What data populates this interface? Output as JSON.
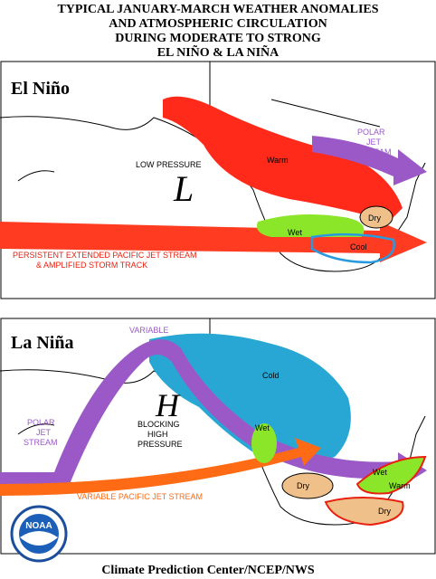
{
  "header": {
    "title_lines": [
      "TYPICAL JANUARY-MARCH WEATHER ANOMALIES",
      "AND ATMOSPHERIC CIRCULATION",
      "DURING MODERATE TO STRONG",
      "EL NIÑO & LA NIÑA"
    ]
  },
  "el_nino": {
    "label": "El Niño",
    "low_pressure": "LOW PRESSURE",
    "low_symbol": "L",
    "warm": "Warm",
    "polar_jet": [
      "POLAR",
      "JET",
      "STREAM"
    ],
    "dry": "Dry",
    "wet": "Wet",
    "cool": "Cool",
    "pacific_jet": [
      "PERSISTENT EXTENDED PACIFIC JET STREAM",
      "& AMPLIFIED STORM TRACK"
    ]
  },
  "la_nina": {
    "label": "La Niña",
    "variable": "VARIABLE",
    "cold": "Cold",
    "high_symbol": "H",
    "blocking": [
      "BLOCKING",
      "HIGH",
      "PRESSURE"
    ],
    "wet_west": "Wet",
    "polar_jet": [
      "POLAR",
      "JET",
      "STREAM"
    ],
    "wet_east": "Wet",
    "warm": "Warm",
    "dry_west": "Dry",
    "dry_east": "Dry",
    "pacific_jet": "VARIABLE PACIFIC JET STREAM"
  },
  "footer": {
    "logo": "NOAA",
    "credit": "Climate Prediction Center/NCEP/NWS"
  }
}
